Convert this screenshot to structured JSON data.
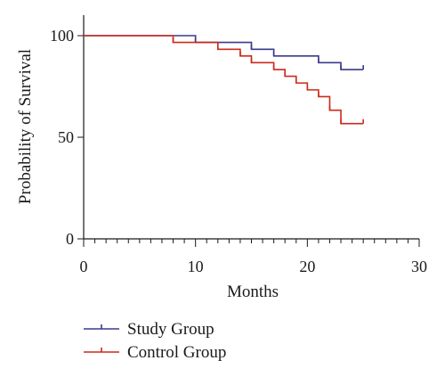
{
  "chart_data": {
    "type": "line",
    "step": true,
    "xlabel": "Months",
    "ylabel": "Probability of Survival",
    "xlim": [
      0,
      30
    ],
    "ylim": [
      0,
      100
    ],
    "x_ticks": [
      0,
      10,
      20,
      30
    ],
    "y_ticks": [
      0,
      50,
      100
    ],
    "x_minor_step": 1,
    "grid": false,
    "legend_position": "bottom-left",
    "series": [
      {
        "name": "Study Group",
        "color": "#3a3a8c",
        "steps": [
          [
            0,
            100
          ],
          [
            10,
            96.7
          ],
          [
            15,
            93.3
          ],
          [
            17,
            90
          ],
          [
            21,
            86.7
          ],
          [
            23,
            83.3
          ],
          [
            25,
            83.3
          ]
        ],
        "censor_x": [
          10,
          15,
          17,
          21,
          23,
          25
        ]
      },
      {
        "name": "Control Group",
        "color": "#cc2a1a",
        "steps": [
          [
            0,
            100
          ],
          [
            8,
            96.7
          ],
          [
            12,
            93.3
          ],
          [
            14,
            90
          ],
          [
            15,
            86.7
          ],
          [
            17,
            83.3
          ],
          [
            18,
            80
          ],
          [
            19,
            76.7
          ],
          [
            20,
            73.3
          ],
          [
            21,
            70
          ],
          [
            22,
            63.3
          ],
          [
            23,
            56.7
          ],
          [
            25,
            56.7
          ]
        ],
        "censor_x": [
          8,
          12,
          14,
          15,
          17,
          18,
          19,
          20,
          21,
          22,
          23,
          25
        ]
      }
    ]
  }
}
